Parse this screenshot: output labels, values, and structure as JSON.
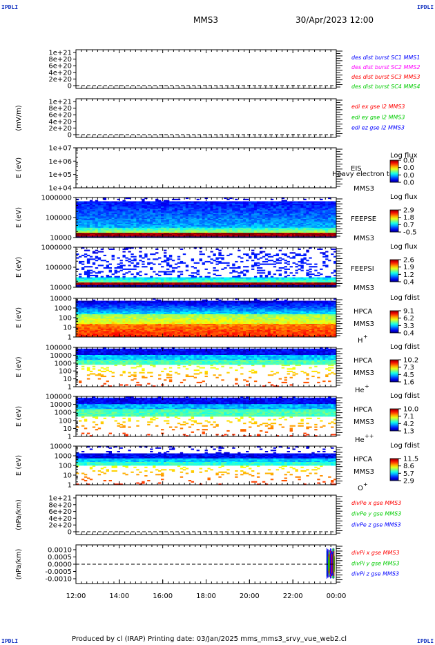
{
  "header": {
    "corner_label": "IPDLI",
    "spacecraft": "MMS3",
    "datetime": "30/Apr/2023 12:00"
  },
  "footer": {
    "text": "Produced by cl (IRAP)   Printing date: 03/Jan/2025   mms_mms3_srvy_vue_web2.cl"
  },
  "colors": {
    "mms1": "#0000ff",
    "mms2": "#ff00ff",
    "mms3": "#ff0000",
    "mms4": "#00cc00",
    "x": "#ff0000",
    "y": "#00cc00",
    "z": "#0000ff"
  },
  "chart_data": [
    {
      "type": "line",
      "ylabel": "",
      "yticks": [
        "1e+21",
        "8e+20",
        "6e+20",
        "4e+20",
        "2e+20",
        "0"
      ],
      "ylim": [
        0,
        1e+21
      ],
      "legend": [
        {
          "text": "des dist burst SC1 MMS1",
          "color": "#0000ff"
        },
        {
          "text": "des dist burst SC2 MMS2",
          "color": "#ff00ff"
        },
        {
          "text": "des dist burst SC3 MMS3",
          "color": "#ff0000"
        },
        {
          "text": "des dist burst SC4 MMS4",
          "color": "#00cc00"
        }
      ],
      "zero_line": true
    },
    {
      "type": "line",
      "ylabel": "(mV/m)",
      "yticks": [
        "1e+21",
        "8e+20",
        "6e+20",
        "4e+20",
        "2e+20",
        "0"
      ],
      "ylim": [
        0,
        1e+21
      ],
      "legend": [
        {
          "text": "edi ex gse l2 MMS3",
          "color": "#ff0000"
        },
        {
          "text": "edi ey gse l2 MMS3",
          "color": "#00cc00"
        },
        {
          "text": "edi ez gse l2 MMS3",
          "color": "#0000ff"
        }
      ],
      "zero_line": true
    },
    {
      "type": "heatmap",
      "ylabel": "E (eV)",
      "yticks": [
        "1e+07",
        "1e+06",
        "1e+05",
        "1e+04"
      ],
      "instrument": [
        "EIS",
        "MMS3"
      ],
      "overlay_text": "Heavy electron to",
      "colorbar_title": "Log flux",
      "colorbar_ticks": [
        "0.0",
        "0.0",
        "0.0",
        "0.0"
      ],
      "spectrum": "none"
    },
    {
      "type": "heatmap",
      "ylabel": "E (eV)",
      "yticks": [
        "1000000",
        "100000",
        "10000"
      ],
      "instrument": [
        "FEEPSE",
        "MMS3"
      ],
      "colorbar_title": "Log flux",
      "colorbar_ticks": [
        "2.9",
        "1.8",
        "0.7",
        "-0.5"
      ],
      "spectrum": "feepse"
    },
    {
      "type": "heatmap",
      "ylabel": "E (eV)",
      "yticks": [
        "1000000",
        "100000",
        "10000"
      ],
      "instrument": [
        "FEEPSI",
        "MMS3"
      ],
      "colorbar_title": "Log flux",
      "colorbar_ticks": [
        "2.6",
        "1.9",
        "1.2",
        "0.4"
      ],
      "spectrum": "feepsi"
    },
    {
      "type": "heatmap",
      "ylabel": "E (eV)",
      "yticks": [
        "10000",
        "1000",
        "100",
        "10",
        "1"
      ],
      "instrument": [
        "HPCA",
        "MMS3"
      ],
      "species": "H",
      "species_sup": "+",
      "colorbar_title": "Log fdist",
      "colorbar_ticks": [
        "9.1",
        "6.2",
        "3.3",
        "0.4"
      ],
      "spectrum": "hplus"
    },
    {
      "type": "heatmap",
      "ylabel": "E (eV)",
      "yticks": [
        "100000",
        "10000",
        "1000",
        "100",
        "10",
        "1"
      ],
      "instrument": [
        "HPCA",
        "MMS3"
      ],
      "species": "He",
      "species_sup": "+",
      "colorbar_title": "Log fdist",
      "colorbar_ticks": [
        "10.2",
        "7.3",
        "4.5",
        "1.6"
      ],
      "spectrum": "heplus"
    },
    {
      "type": "heatmap",
      "ylabel": "E (eV)",
      "yticks": [
        "100000",
        "10000",
        "1000",
        "100",
        "10",
        "1"
      ],
      "instrument": [
        "HPCA",
        "MMS3"
      ],
      "species": "He",
      "species_sup": "++",
      "colorbar_title": "Log fdist",
      "colorbar_ticks": [
        "10.0",
        "7.1",
        "4.2",
        "1.3"
      ],
      "spectrum": "heplusplus"
    },
    {
      "type": "heatmap",
      "ylabel": "E (eV)",
      "yticks": [
        "10000",
        "1000",
        "100",
        "10",
        "1"
      ],
      "instrument": [
        "HPCA",
        "MMS3"
      ],
      "species": "O",
      "species_sup": "+",
      "colorbar_title": "Log fdist",
      "colorbar_ticks": [
        "11.5",
        "8.6",
        "5.7",
        "2.9"
      ],
      "spectrum": "oplus"
    },
    {
      "type": "line",
      "ylabel": "(nPa/km)",
      "yticks": [
        "1e+21",
        "8e+20",
        "6e+20",
        "4e+20",
        "2e+20",
        "0"
      ],
      "ylim": [
        0,
        1e+21
      ],
      "legend": [
        {
          "text": "divPe x gse MMS3",
          "color": "#ff0000"
        },
        {
          "text": "divPe y gse MMS3",
          "color": "#00cc00"
        },
        {
          "text": "divPe z gse MMS3",
          "color": "#0000ff"
        }
      ],
      "zero_line": true
    },
    {
      "type": "line",
      "ylabel": "(nPa/km)",
      "yticks": [
        "0.0010",
        "0.0005",
        "0.0000",
        "-0.0005",
        "-0.0010"
      ],
      "ylim": [
        -0.0012,
        0.0012
      ],
      "legend": [
        {
          "text": "divPi x gse MMS3",
          "color": "#ff0000"
        },
        {
          "text": "divPi y gse MMS3",
          "color": "#00cc00"
        },
        {
          "text": "divPi z gse MMS3",
          "color": "#0000ff"
        }
      ],
      "zero_line": true,
      "burst_at_end": true
    }
  ],
  "time_axis": {
    "ticks": [
      "12:00",
      "14:00",
      "16:00",
      "18:00",
      "20:00",
      "22:00",
      "00:00"
    ]
  }
}
